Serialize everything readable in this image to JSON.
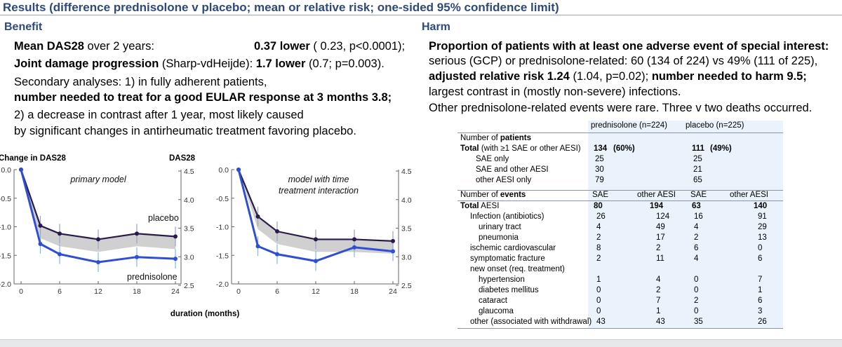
{
  "title": "Results (difference prednisolone v placebo; mean or relative risk; one-sided 95% confidence limit)",
  "benefit": {
    "heading": "Benefit",
    "das_label": "Mean DAS28",
    "das_text": " over 2 years:",
    "das_value": "0.37 lower",
    "das_ci": " ( 0.23, p<0.0001);",
    "joint_label": "Joint damage progression",
    "joint_method": " (Sharp-vdHeijde): ",
    "joint_value": "1.7  lower",
    "joint_ci": " (0.7; p=0.003).",
    "secondary": "Secondary analyses: 1) in fully adherent patients,",
    "nnt": "number needed to treat for a good EULAR response at 3 months  3.8;",
    "decrease": "2) a decrease in contrast after 1 year, most likely caused",
    "changes": "by significant changes in antirheumatic treatment favoring placebo."
  },
  "harm": {
    "heading": "Harm",
    "l1": "Proportion of patients with at least one adverse event of special interest:",
    "l2": "serious (GCP) or prednisolone-related: 60 (134 of 224) vs 49% (111 of 225),",
    "l3a": "adjusted relative risk 1.24",
    "l3b": " (1.04, p=0.02); ",
    "l3c": "number needed to harm 9.5;",
    "l4": "largest contrast in (mostly non-severe) infections.",
    "l5": "Other prednisolone-related events were rare. Three v two deaths occurred."
  },
  "chart_data": [
    {
      "type": "line",
      "annotation": "primary model",
      "ylabel_left": "Change in DAS28",
      "ylabel_right": "DAS28",
      "xlabel": "duration (months)",
      "xticks": [
        0,
        6,
        12,
        18,
        24
      ],
      "ylim": [
        -2.0,
        0.0
      ],
      "yticks_left": [
        "0.0",
        "-0.5",
        "-1.0",
        "-1.5",
        "-2.0"
      ],
      "yticks_right": [
        "4.5",
        "4.0",
        "3.5",
        "3.0",
        "2.5"
      ],
      "series": [
        {
          "name": "placebo",
          "color": "#2b1b4a",
          "x": [
            0,
            3,
            6,
            12,
            18,
            24
          ],
          "y": [
            0.0,
            -0.98,
            -1.12,
            -1.22,
            -1.12,
            -1.17
          ]
        },
        {
          "name": "prednisolone",
          "color": "#2e4fd4",
          "x": [
            0,
            3,
            6,
            12,
            18,
            24
          ],
          "y": [
            0.0,
            -1.3,
            -1.48,
            -1.62,
            -1.53,
            -1.56
          ]
        }
      ]
    },
    {
      "type": "line",
      "annotation": "model with time\ntreatment interaction",
      "xticks": [
        0,
        6,
        12,
        18,
        24
      ],
      "ylim": [
        -2.0,
        0.0
      ],
      "yticks_left": [
        "0.0",
        "-0.5",
        "-1.0",
        "-1.5",
        "-2.0"
      ],
      "yticks_right": [
        "4.5",
        "4.0",
        "3.5",
        "3.0",
        "2.5"
      ],
      "series": [
        {
          "name": "",
          "color": "#2b1b4a",
          "x": [
            0,
            3,
            6,
            12,
            18,
            24
          ],
          "y": [
            0.0,
            -0.82,
            -1.08,
            -1.22,
            -1.22,
            -1.25
          ]
        },
        {
          "name": "",
          "color": "#2e4fd4",
          "x": [
            0,
            3,
            6,
            12,
            18,
            24
          ],
          "y": [
            0.0,
            -1.34,
            -1.48,
            -1.6,
            -1.36,
            -1.43
          ]
        }
      ]
    }
  ],
  "table": {
    "col_pred": "prednisolone (n=224)",
    "col_plac": "placebo (n=225)",
    "patients_label": "Number of ",
    "patients_bold": "patients",
    "total_label": "Total",
    "total_text": " (with ≥1 SAE or other AESI)",
    "total_pred": "134",
    "total_pred_pct": "(60%)",
    "total_plac": "111",
    "total_plac_pct": "(49%)",
    "patient_rows": [
      {
        "label": "SAE only",
        "pred": "25",
        "plac": "25"
      },
      {
        "label": "SAE and other AESI",
        "pred": "30",
        "plac": "21"
      },
      {
        "label": "other AESI only",
        "pred": "79",
        "plac": "65"
      }
    ],
    "events_label": "Number of ",
    "events_bold": "events",
    "sae": "SAE",
    "other_aesi": "other AESI",
    "aesi_label": "Total",
    "aesi_text": " AESI",
    "aesi_vals": [
      "80",
      "194",
      "63",
      "140"
    ],
    "event_rows": [
      {
        "label": "Infection (antibiotics)",
        "v": [
          "26",
          "124",
          "16",
          "91"
        ],
        "indent": 1
      },
      {
        "label": "urinary tract",
        "v": [
          "4",
          "49",
          "4",
          "29"
        ],
        "indent": 2
      },
      {
        "label": "pneumonia",
        "v": [
          "2",
          "17",
          "2",
          "13"
        ],
        "indent": 2
      },
      {
        "label": "ischemic cardiovascular",
        "v": [
          "8",
          "2",
          "6",
          "0"
        ],
        "indent": 1
      },
      {
        "label": "symptomatic fracture",
        "v": [
          "2",
          "11",
          "4",
          "6"
        ],
        "indent": 1
      },
      {
        "label": "new onset (req. treatment)",
        "v": [
          "",
          "",
          "",
          ""
        ],
        "indent": 1
      },
      {
        "label": "hypertension",
        "v": [
          "1",
          "4",
          "0",
          "7"
        ],
        "indent": 2
      },
      {
        "label": "diabetes mellitus",
        "v": [
          "0",
          "2",
          "0",
          "1"
        ],
        "indent": 2
      },
      {
        "label": "cataract",
        "v": [
          "0",
          "7",
          "2",
          "6"
        ],
        "indent": 2
      },
      {
        "label": "glaucoma",
        "v": [
          "0",
          "1",
          "0",
          "3"
        ],
        "indent": 2
      },
      {
        "label": "other (associated with withdrawal)",
        "v": [
          "43",
          "43",
          "35",
          "26"
        ],
        "indent": 1
      }
    ]
  }
}
